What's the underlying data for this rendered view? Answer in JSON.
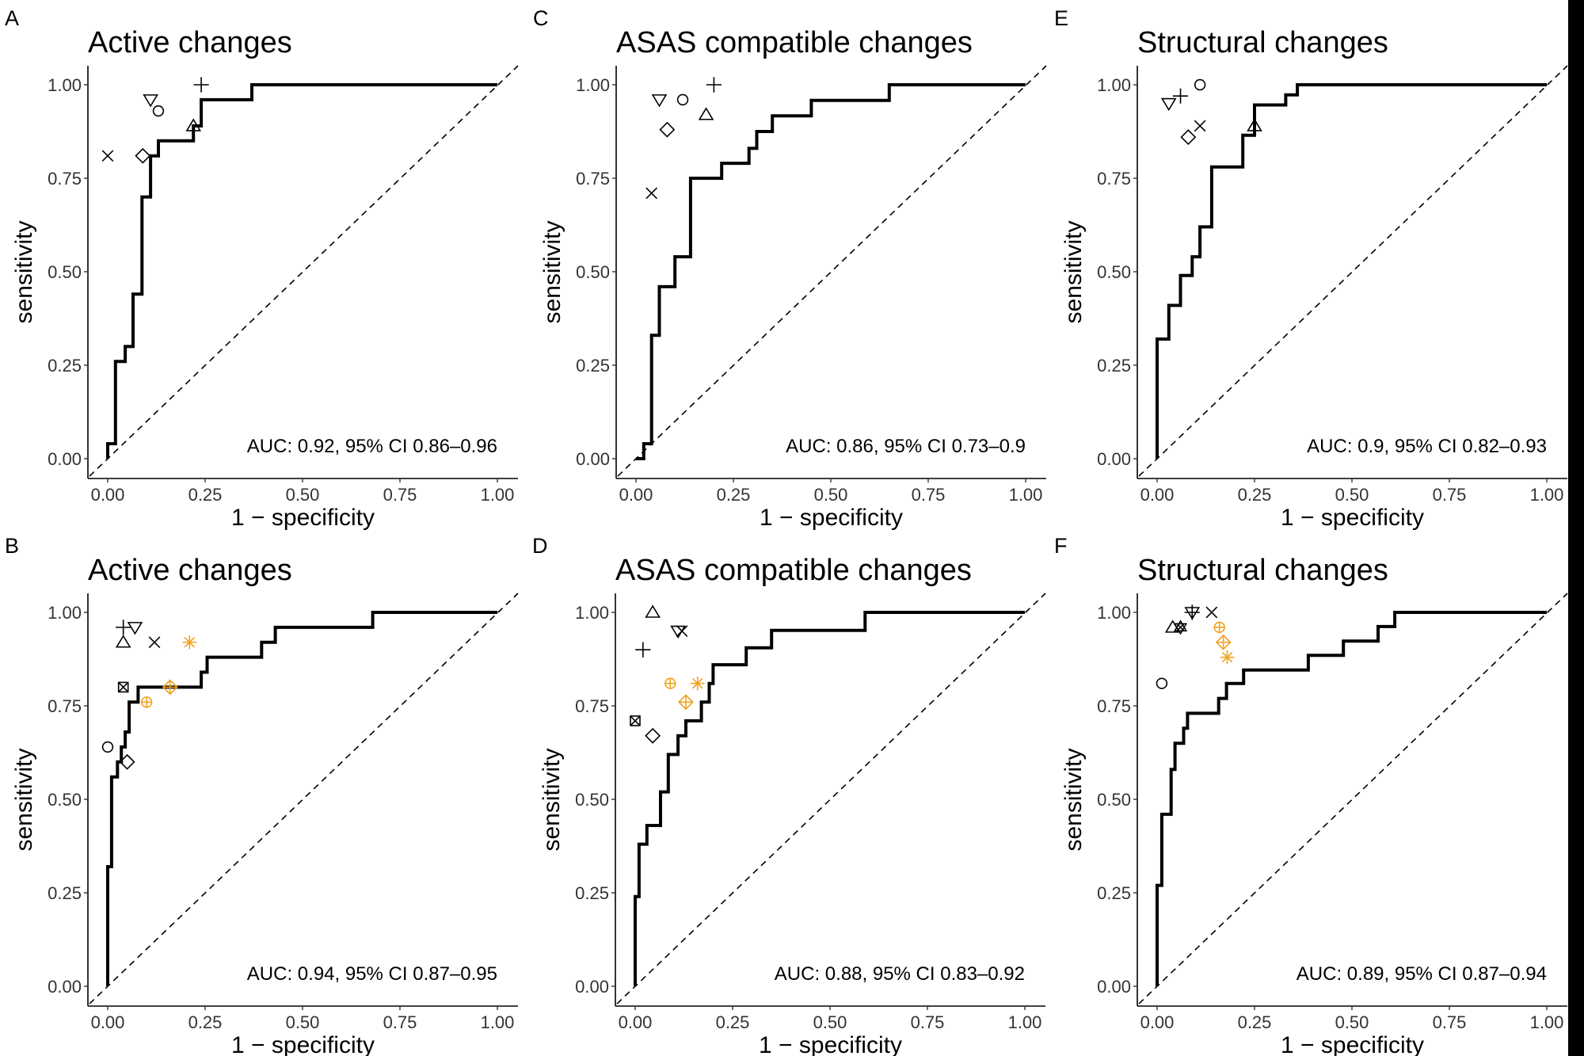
{
  "figure": {
    "colors": {
      "curve": "#000000",
      "marker": "#000000",
      "highlight": "#F0A21E",
      "background": "#FFFFFF"
    }
  },
  "chart_data": [
    {
      "panel": "A",
      "type": "line",
      "title": "Active changes",
      "xlabel": "1 − specificity",
      "ylabel": "sensitivity",
      "xlim": [
        0,
        1
      ],
      "ylim": [
        0,
        1
      ],
      "xticks": [
        "0.00",
        "0.25",
        "0.50",
        "0.75",
        "1.00"
      ],
      "yticks": [
        "0.00",
        "0.25",
        "0.50",
        "0.75",
        "1.00"
      ],
      "annotation": "AUC: 0.92, 95% CI 0.86–0.96",
      "reference_line": "diagonal dashed",
      "roc": [
        [
          0,
          0
        ],
        [
          0,
          0.04
        ],
        [
          0.02,
          0.04
        ],
        [
          0.02,
          0.26
        ],
        [
          0.045,
          0.26
        ],
        [
          0.045,
          0.3
        ],
        [
          0.065,
          0.3
        ],
        [
          0.065,
          0.44
        ],
        [
          0.088,
          0.44
        ],
        [
          0.088,
          0.7
        ],
        [
          0.11,
          0.7
        ],
        [
          0.11,
          0.81
        ],
        [
          0.13,
          0.81
        ],
        [
          0.13,
          0.85
        ],
        [
          0.22,
          0.85
        ],
        [
          0.22,
          0.89
        ],
        [
          0.24,
          0.89
        ],
        [
          0.24,
          0.96
        ],
        [
          0.37,
          0.96
        ],
        [
          0.37,
          1
        ],
        [
          1,
          1
        ]
      ],
      "points": [
        {
          "shape": "x",
          "x": 0.0,
          "y": 0.81,
          "color": "black"
        },
        {
          "shape": "diamond",
          "x": 0.09,
          "y": 0.81,
          "color": "black"
        },
        {
          "shape": "triangle-down",
          "x": 0.11,
          "y": 0.96,
          "color": "black"
        },
        {
          "shape": "circle",
          "x": 0.13,
          "y": 0.93,
          "color": "black"
        },
        {
          "shape": "triangle",
          "x": 0.22,
          "y": 0.89,
          "color": "black"
        },
        {
          "shape": "plus",
          "x": 0.24,
          "y": 1.0,
          "color": "black"
        }
      ]
    },
    {
      "panel": "B",
      "type": "line",
      "title": "Active changes",
      "xlabel": "1 − specificity",
      "ylabel": "sensitivity",
      "xlim": [
        0,
        1
      ],
      "ylim": [
        0,
        1
      ],
      "xticks": [
        "0.00",
        "0.25",
        "0.50",
        "0.75",
        "1.00"
      ],
      "yticks": [
        "0.00",
        "0.25",
        "0.50",
        "0.75",
        "1.00"
      ],
      "annotation": "AUC: 0.94, 95% CI 0.87–0.95",
      "reference_line": "diagonal dashed",
      "roc": [
        [
          0,
          0
        ],
        [
          0,
          0.32
        ],
        [
          0.01,
          0.32
        ],
        [
          0.01,
          0.56
        ],
        [
          0.025,
          0.56
        ],
        [
          0.025,
          0.6
        ],
        [
          0.035,
          0.6
        ],
        [
          0.035,
          0.64
        ],
        [
          0.045,
          0.64
        ],
        [
          0.045,
          0.68
        ],
        [
          0.055,
          0.68
        ],
        [
          0.055,
          0.76
        ],
        [
          0.078,
          0.76
        ],
        [
          0.078,
          0.8
        ],
        [
          0.24,
          0.8
        ],
        [
          0.24,
          0.84
        ],
        [
          0.255,
          0.84
        ],
        [
          0.255,
          0.88
        ],
        [
          0.395,
          0.88
        ],
        [
          0.395,
          0.92
        ],
        [
          0.43,
          0.92
        ],
        [
          0.43,
          0.96
        ],
        [
          0.68,
          0.96
        ],
        [
          0.68,
          1
        ],
        [
          1,
          1
        ]
      ],
      "points": [
        {
          "shape": "circle",
          "x": 0.0,
          "y": 0.64,
          "color": "black"
        },
        {
          "shape": "diamond",
          "x": 0.05,
          "y": 0.6,
          "color": "black"
        },
        {
          "shape": "square-x",
          "x": 0.04,
          "y": 0.8,
          "color": "black"
        },
        {
          "shape": "triangle",
          "x": 0.04,
          "y": 0.92,
          "color": "black"
        },
        {
          "shape": "plus",
          "x": 0.04,
          "y": 0.96,
          "color": "black"
        },
        {
          "shape": "triangle-down",
          "x": 0.07,
          "y": 0.96,
          "color": "black"
        },
        {
          "shape": "x",
          "x": 0.12,
          "y": 0.92,
          "color": "black"
        },
        {
          "shape": "asterisk",
          "x": 0.21,
          "y": 0.92,
          "color": "orange"
        },
        {
          "shape": "circle-plus",
          "x": 0.1,
          "y": 0.76,
          "color": "orange"
        },
        {
          "shape": "diamond-plus",
          "x": 0.16,
          "y": 0.8,
          "color": "orange"
        }
      ]
    },
    {
      "panel": "C",
      "type": "line",
      "title": "ASAS compatible changes",
      "xlabel": "1 − specificity",
      "ylabel": "sensitivity",
      "xlim": [
        0,
        1
      ],
      "ylim": [
        0,
        1
      ],
      "xticks": [
        "0.00",
        "0.25",
        "0.50",
        "0.75",
        "1.00"
      ],
      "yticks": [
        "0.00",
        "0.25",
        "0.50",
        "0.75",
        "1.00"
      ],
      "annotation": "AUC: 0.86, 95% CI 0.73–0.9",
      "reference_line": "diagonal dashed",
      "roc": [
        [
          0,
          0
        ],
        [
          0.02,
          0
        ],
        [
          0.02,
          0.04
        ],
        [
          0.04,
          0.04
        ],
        [
          0.04,
          0.33
        ],
        [
          0.06,
          0.33
        ],
        [
          0.06,
          0.46
        ],
        [
          0.1,
          0.46
        ],
        [
          0.1,
          0.54
        ],
        [
          0.14,
          0.54
        ],
        [
          0.14,
          0.75
        ],
        [
          0.22,
          0.75
        ],
        [
          0.22,
          0.79
        ],
        [
          0.29,
          0.79
        ],
        [
          0.29,
          0.83
        ],
        [
          0.31,
          0.83
        ],
        [
          0.31,
          0.875
        ],
        [
          0.35,
          0.875
        ],
        [
          0.35,
          0.917
        ],
        [
          0.45,
          0.917
        ],
        [
          0.45,
          0.958
        ],
        [
          0.65,
          0.958
        ],
        [
          0.65,
          1
        ],
        [
          1,
          1
        ]
      ],
      "points": [
        {
          "shape": "x",
          "x": 0.04,
          "y": 0.71,
          "color": "black"
        },
        {
          "shape": "triangle-down",
          "x": 0.06,
          "y": 0.96,
          "color": "black"
        },
        {
          "shape": "diamond",
          "x": 0.08,
          "y": 0.88,
          "color": "black"
        },
        {
          "shape": "circle",
          "x": 0.12,
          "y": 0.96,
          "color": "black"
        },
        {
          "shape": "triangle",
          "x": 0.18,
          "y": 0.92,
          "color": "black"
        },
        {
          "shape": "plus",
          "x": 0.2,
          "y": 1.0,
          "color": "black"
        }
      ]
    },
    {
      "panel": "D",
      "type": "line",
      "title": "ASAS compatible changes",
      "xlabel": "1 − specificity",
      "ylabel": "sensitivity",
      "xlim": [
        0,
        1
      ],
      "ylim": [
        0,
        1
      ],
      "xticks": [
        "0.00",
        "0.25",
        "0.50",
        "0.75",
        "1.00"
      ],
      "yticks": [
        "0.00",
        "0.25",
        "0.50",
        "0.75",
        "1.00"
      ],
      "annotation": "AUC: 0.88, 95% CI 0.83–0.92",
      "reference_line": "diagonal dashed",
      "roc": [
        [
          0,
          0
        ],
        [
          0,
          0.24
        ],
        [
          0.01,
          0.24
        ],
        [
          0.01,
          0.38
        ],
        [
          0.03,
          0.38
        ],
        [
          0.03,
          0.43
        ],
        [
          0.065,
          0.43
        ],
        [
          0.065,
          0.52
        ],
        [
          0.085,
          0.52
        ],
        [
          0.085,
          0.62
        ],
        [
          0.11,
          0.62
        ],
        [
          0.11,
          0.67
        ],
        [
          0.13,
          0.67
        ],
        [
          0.13,
          0.71
        ],
        [
          0.17,
          0.71
        ],
        [
          0.17,
          0.76
        ],
        [
          0.19,
          0.76
        ],
        [
          0.19,
          0.81
        ],
        [
          0.2,
          0.81
        ],
        [
          0.2,
          0.86
        ],
        [
          0.285,
          0.86
        ],
        [
          0.285,
          0.905
        ],
        [
          0.35,
          0.905
        ],
        [
          0.35,
          0.952
        ],
        [
          0.59,
          0.952
        ],
        [
          0.59,
          1
        ],
        [
          1,
          1
        ]
      ],
      "points": [
        {
          "shape": "triangle",
          "x": 0.045,
          "y": 1.0,
          "color": "black"
        },
        {
          "shape": "triangle-down",
          "x": 0.11,
          "y": 0.95,
          "color": "black"
        },
        {
          "shape": "x",
          "x": 0.12,
          "y": 0.95,
          "color": "black"
        },
        {
          "shape": "plus",
          "x": 0.02,
          "y": 0.9,
          "color": "black"
        },
        {
          "shape": "square-x",
          "x": 0.0,
          "y": 0.71,
          "color": "black"
        },
        {
          "shape": "diamond",
          "x": 0.045,
          "y": 0.67,
          "color": "black"
        },
        {
          "shape": "circle-plus",
          "x": 0.09,
          "y": 0.81,
          "color": "orange"
        },
        {
          "shape": "asterisk",
          "x": 0.16,
          "y": 0.81,
          "color": "orange"
        },
        {
          "shape": "diamond-plus",
          "x": 0.13,
          "y": 0.76,
          "color": "orange"
        }
      ]
    },
    {
      "panel": "E",
      "type": "line",
      "title": "Structural changes",
      "xlabel": "1 − specificity",
      "ylabel": "sensitivity",
      "xlim": [
        0,
        1
      ],
      "ylim": [
        0,
        1
      ],
      "xticks": [
        "0.00",
        "0.25",
        "0.50",
        "0.75",
        "1.00"
      ],
      "yticks": [
        "0.00",
        "0.25",
        "0.50",
        "0.75",
        "1.00"
      ],
      "annotation": "AUC: 0.9, 95% CI 0.82–0.93",
      "reference_line": "diagonal dashed",
      "roc": [
        [
          0,
          0
        ],
        [
          0,
          0.32
        ],
        [
          0.03,
          0.32
        ],
        [
          0.03,
          0.41
        ],
        [
          0.06,
          0.41
        ],
        [
          0.06,
          0.49
        ],
        [
          0.09,
          0.49
        ],
        [
          0.09,
          0.54
        ],
        [
          0.11,
          0.54
        ],
        [
          0.11,
          0.62
        ],
        [
          0.14,
          0.62
        ],
        [
          0.14,
          0.78
        ],
        [
          0.22,
          0.78
        ],
        [
          0.22,
          0.865
        ],
        [
          0.25,
          0.865
        ],
        [
          0.25,
          0.946
        ],
        [
          0.33,
          0.946
        ],
        [
          0.33,
          0.973
        ],
        [
          0.36,
          0.973
        ],
        [
          0.36,
          1
        ],
        [
          1,
          1
        ]
      ],
      "points": [
        {
          "shape": "triangle-down",
          "x": 0.03,
          "y": 0.95,
          "color": "black"
        },
        {
          "shape": "plus",
          "x": 0.06,
          "y": 0.97,
          "color": "black"
        },
        {
          "shape": "circle",
          "x": 0.11,
          "y": 1.0,
          "color": "black"
        },
        {
          "shape": "diamond",
          "x": 0.08,
          "y": 0.86,
          "color": "black"
        },
        {
          "shape": "x",
          "x": 0.11,
          "y": 0.89,
          "color": "black"
        },
        {
          "shape": "triangle",
          "x": 0.25,
          "y": 0.89,
          "color": "black"
        }
      ]
    },
    {
      "panel": "F",
      "type": "line",
      "title": "Structural changes",
      "xlabel": "1 − specificity",
      "ylabel": "sensitivity",
      "xlim": [
        0,
        1
      ],
      "ylim": [
        0,
        1
      ],
      "xticks": [
        "0.00",
        "0.25",
        "0.50",
        "0.75",
        "1.00"
      ],
      "yticks": [
        "0.00",
        "0.25",
        "0.50",
        "0.75",
        "1.00"
      ],
      "annotation": "AUC: 0.89, 95% CI 0.87–0.94",
      "reference_line": "diagonal dashed",
      "roc": [
        [
          0,
          0
        ],
        [
          0,
          0.27
        ],
        [
          0.012,
          0.27
        ],
        [
          0.012,
          0.46
        ],
        [
          0.036,
          0.46
        ],
        [
          0.036,
          0.58
        ],
        [
          0.046,
          0.58
        ],
        [
          0.046,
          0.65
        ],
        [
          0.068,
          0.65
        ],
        [
          0.068,
          0.69
        ],
        [
          0.078,
          0.69
        ],
        [
          0.078,
          0.73
        ],
        [
          0.158,
          0.73
        ],
        [
          0.158,
          0.77
        ],
        [
          0.178,
          0.77
        ],
        [
          0.178,
          0.81
        ],
        [
          0.222,
          0.81
        ],
        [
          0.222,
          0.846
        ],
        [
          0.388,
          0.846
        ],
        [
          0.388,
          0.885
        ],
        [
          0.478,
          0.885
        ],
        [
          0.478,
          0.923
        ],
        [
          0.567,
          0.923
        ],
        [
          0.567,
          0.962
        ],
        [
          0.61,
          0.962
        ],
        [
          0.61,
          1
        ],
        [
          1,
          1
        ]
      ],
      "points": [
        {
          "shape": "circle",
          "x": 0.012,
          "y": 0.81,
          "color": "black"
        },
        {
          "shape": "triangle",
          "x": 0.04,
          "y": 0.96,
          "color": "black"
        },
        {
          "shape": "star-of-david-x",
          "x": 0.06,
          "y": 0.96,
          "color": "black"
        },
        {
          "shape": "plus",
          "x": 0.09,
          "y": 1.0,
          "color": "black"
        },
        {
          "shape": "triangle-down",
          "x": 0.09,
          "y": 1.0,
          "color": "black"
        },
        {
          "shape": "x",
          "x": 0.14,
          "y": 1.0,
          "color": "black"
        },
        {
          "shape": "circle-plus",
          "x": 0.16,
          "y": 0.96,
          "color": "orange"
        },
        {
          "shape": "diamond-plus",
          "x": 0.17,
          "y": 0.92,
          "color": "orange"
        },
        {
          "shape": "asterisk",
          "x": 0.18,
          "y": 0.88,
          "color": "orange"
        }
      ]
    }
  ]
}
